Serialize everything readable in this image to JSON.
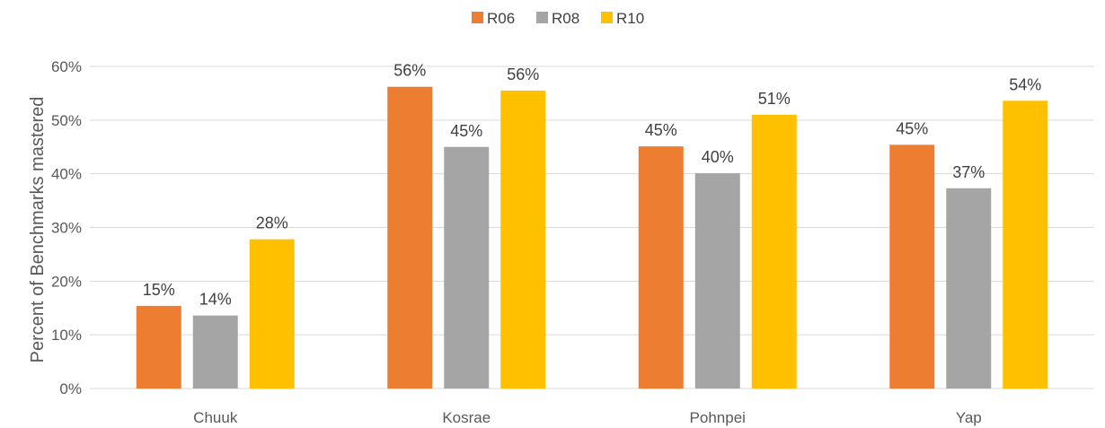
{
  "chart_data": {
    "type": "bar",
    "title": "",
    "xlabel": "",
    "ylabel": "Percent of Benchmarks mastered",
    "categories": [
      "Chuuk",
      "Kosrae",
      "Pohnpei",
      "Yap"
    ],
    "series": [
      {
        "name": "R06",
        "color": "#ED7D31",
        "values": [
          0.154,
          0.562,
          0.451,
          0.454
        ],
        "labels": [
          "15%",
          "56%",
          "45%",
          "45%"
        ]
      },
      {
        "name": "R08",
        "color": "#A5A5A5",
        "values": [
          0.136,
          0.45,
          0.401,
          0.373
        ],
        "labels": [
          "14%",
          "45%",
          "40%",
          "37%"
        ]
      },
      {
        "name": "R10",
        "color": "#FFC000",
        "values": [
          0.278,
          0.555,
          0.51,
          0.536
        ],
        "labels": [
          "28%",
          "56%",
          "51%",
          "54%"
        ]
      }
    ],
    "ylim": [
      0,
      0.6
    ],
    "yticks": [
      0,
      0.1,
      0.2,
      0.3,
      0.4,
      0.5,
      0.6
    ],
    "ytick_labels": [
      "0%",
      "10%",
      "20%",
      "30%",
      "40%",
      "50%",
      "60%"
    ],
    "grid": true,
    "legend_position": "top-center"
  }
}
